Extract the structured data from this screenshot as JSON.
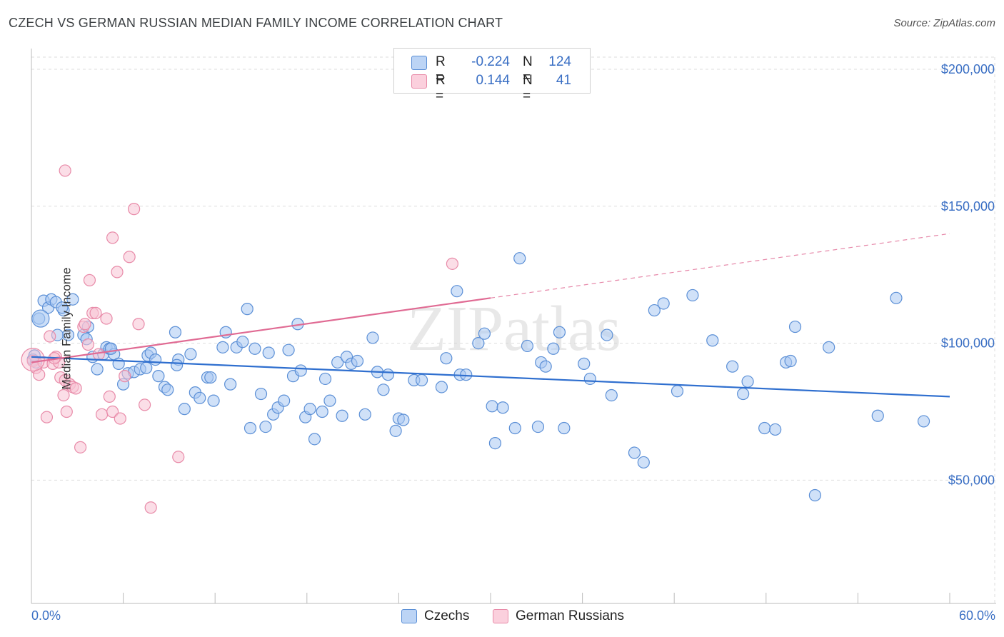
{
  "title": "CZECH VS GERMAN RUSSIAN MEDIAN FAMILY INCOME CORRELATION CHART",
  "source": "Source: ZipAtlas.com",
  "watermark": "ZIPatlas",
  "legend": {
    "rows": [
      {
        "r_label": "R =",
        "r_value": "-0.224",
        "n_label": "N =",
        "n_value": "124"
      },
      {
        "r_label": "R =",
        "r_value": "0.144",
        "n_label": "N =",
        "n_value": "41"
      }
    ]
  },
  "bottom_legend": {
    "series_a": "Czechs",
    "series_b": "German Russians"
  },
  "colors": {
    "czech_fill": "#a9c8f2",
    "czech_stroke": "#5b8fd6",
    "czech_line": "#2f6fcf",
    "gr_fill": "#f8c2d3",
    "gr_stroke": "#e88aa8",
    "gr_line": "#e06a93",
    "axis_text": "#3a6fc4",
    "grid": "#dddddd"
  },
  "chart_data": {
    "type": "scatter",
    "title": "CZECH VS GERMAN RUSSIAN MEDIAN FAMILY INCOME CORRELATION CHART",
    "xlabel": "",
    "ylabel": "Median Family Income",
    "xlim": [
      0,
      60
    ],
    "ylim": [
      5000,
      210000
    ],
    "x_tick_labels": [
      "0.0%",
      "60.0%"
    ],
    "y_ticks": [
      50000,
      100000,
      150000,
      200000
    ],
    "y_tick_labels": [
      "$50,000",
      "$100,000",
      "$150,000",
      "$200,000"
    ],
    "grid": true,
    "series": [
      {
        "name": "Czechs",
        "r": -0.224,
        "n": 124,
        "trend": {
          "x0": 0,
          "y0": 95000,
          "x1": 60,
          "y1": 80500
        },
        "points": [
          [
            0.5,
            109000
          ],
          [
            0.8,
            115500
          ],
          [
            1.1,
            113000
          ],
          [
            1.3,
            116000
          ],
          [
            1.6,
            115000
          ],
          [
            2.1,
            112000
          ],
          [
            2.4,
            103000
          ],
          [
            2.7,
            116000
          ],
          [
            3.4,
            103000
          ],
          [
            3.6,
            101500
          ],
          [
            3.7,
            106000
          ],
          [
            4.0,
            95000
          ],
          [
            4.3,
            90500
          ],
          [
            4.7,
            96000
          ],
          [
            4.9,
            98500
          ],
          [
            5.1,
            98000
          ],
          [
            5.4,
            96000
          ],
          [
            5.7,
            92500
          ],
          [
            6.0,
            85000
          ],
          [
            6.3,
            89000
          ],
          [
            6.7,
            89500
          ],
          [
            7.1,
            90500
          ],
          [
            7.5,
            91000
          ],
          [
            7.6,
            95500
          ],
          [
            7.8,
            96500
          ],
          [
            8.1,
            94000
          ],
          [
            8.3,
            88000
          ],
          [
            8.7,
            84000
          ],
          [
            8.9,
            83000
          ],
          [
            9.4,
            104000
          ],
          [
            9.6,
            94000
          ],
          [
            10.0,
            76000
          ],
          [
            10.4,
            96000
          ],
          [
            10.7,
            82000
          ],
          [
            11.0,
            80000
          ],
          [
            11.5,
            87500
          ],
          [
            11.7,
            87500
          ],
          [
            11.9,
            79000
          ],
          [
            12.5,
            98500
          ],
          [
            12.7,
            104000
          ],
          [
            13.0,
            85000
          ],
          [
            13.4,
            98500
          ],
          [
            13.8,
            100500
          ],
          [
            14.1,
            112500
          ],
          [
            14.3,
            69000
          ],
          [
            14.6,
            98000
          ],
          [
            15.0,
            81500
          ],
          [
            15.3,
            69500
          ],
          [
            15.5,
            96500
          ],
          [
            15.8,
            74000
          ],
          [
            16.1,
            76500
          ],
          [
            16.5,
            79000
          ],
          [
            16.8,
            97500
          ],
          [
            17.1,
            88000
          ],
          [
            17.4,
            107000
          ],
          [
            17.6,
            90000
          ],
          [
            17.9,
            73000
          ],
          [
            18.2,
            76000
          ],
          [
            18.5,
            65000
          ],
          [
            19.0,
            75000
          ],
          [
            19.2,
            87000
          ],
          [
            19.5,
            79000
          ],
          [
            20.0,
            93000
          ],
          [
            20.3,
            73500
          ],
          [
            20.6,
            95000
          ],
          [
            20.9,
            92500
          ],
          [
            21.3,
            93500
          ],
          [
            21.8,
            74000
          ],
          [
            22.3,
            102000
          ],
          [
            22.6,
            89500
          ],
          [
            23.0,
            83000
          ],
          [
            23.3,
            88500
          ],
          [
            23.8,
            68000
          ],
          [
            24.0,
            72500
          ],
          [
            24.3,
            72000
          ],
          [
            25.0,
            86500
          ],
          [
            25.5,
            86500
          ],
          [
            26.8,
            84000
          ],
          [
            27.1,
            94500
          ],
          [
            27.8,
            119000
          ],
          [
            28.0,
            88500
          ],
          [
            28.4,
            88500
          ],
          [
            29.2,
            100000
          ],
          [
            29.6,
            103500
          ],
          [
            30.1,
            77000
          ],
          [
            30.3,
            63500
          ],
          [
            30.8,
            76500
          ],
          [
            31.6,
            69000
          ],
          [
            31.9,
            131000
          ],
          [
            32.4,
            99000
          ],
          [
            33.1,
            69500
          ],
          [
            33.3,
            93000
          ],
          [
            33.6,
            91500
          ],
          [
            34.1,
            98000
          ],
          [
            34.5,
            104000
          ],
          [
            34.8,
            69000
          ],
          [
            36.1,
            92500
          ],
          [
            36.5,
            87000
          ],
          [
            37.6,
            103000
          ],
          [
            37.9,
            81000
          ],
          [
            39.4,
            60000
          ],
          [
            40.0,
            56500
          ],
          [
            40.7,
            112000
          ],
          [
            41.3,
            114500
          ],
          [
            42.2,
            82500
          ],
          [
            43.2,
            117500
          ],
          [
            44.5,
            101000
          ],
          [
            45.8,
            91500
          ],
          [
            46.5,
            81500
          ],
          [
            46.8,
            86000
          ],
          [
            47.9,
            69000
          ],
          [
            48.6,
            68500
          ],
          [
            49.3,
            93000
          ],
          [
            49.6,
            93500
          ],
          [
            49.9,
            106000
          ],
          [
            51.2,
            44500
          ],
          [
            52.1,
            98500
          ],
          [
            55.3,
            73500
          ],
          [
            56.5,
            116500
          ],
          [
            58.3,
            71500
          ],
          [
            0.1,
            94000
          ],
          [
            0.3,
            93000
          ],
          [
            0.2,
            95500
          ],
          [
            1.7,
            103000
          ],
          [
            9.5,
            92000
          ],
          [
            5.2,
            98000
          ],
          [
            2.0,
            113000
          ]
        ]
      },
      {
        "name": "German Russians",
        "r": 0.144,
        "n": 41,
        "trend": {
          "x0": 0,
          "y0": 93000,
          "x1": 30,
          "y1": 116500
        },
        "trend_extended": {
          "x0": 30,
          "y0": 116500,
          "x1": 60,
          "y1": 140000
        },
        "points": [
          [
            0.1,
            93500
          ],
          [
            0.3,
            91000
          ],
          [
            0.5,
            88500
          ],
          [
            0.8,
            93000
          ],
          [
            1.0,
            73000
          ],
          [
            1.2,
            102500
          ],
          [
            1.4,
            92500
          ],
          [
            1.6,
            95000
          ],
          [
            1.8,
            93000
          ],
          [
            1.9,
            87500
          ],
          [
            2.1,
            81000
          ],
          [
            2.2,
            86500
          ],
          [
            2.3,
            75000
          ],
          [
            2.5,
            85000
          ],
          [
            2.7,
            84000
          ],
          [
            2.9,
            83500
          ],
          [
            3.2,
            62000
          ],
          [
            3.4,
            106000
          ],
          [
            3.5,
            107000
          ],
          [
            3.7,
            99500
          ],
          [
            3.8,
            123000
          ],
          [
            4.0,
            111000
          ],
          [
            4.2,
            111000
          ],
          [
            4.4,
            96000
          ],
          [
            4.6,
            74000
          ],
          [
            4.9,
            109000
          ],
          [
            5.1,
            80500
          ],
          [
            5.3,
            75000
          ],
          [
            5.6,
            126000
          ],
          [
            5.8,
            72500
          ],
          [
            6.1,
            88000
          ],
          [
            6.4,
            131500
          ],
          [
            6.7,
            149000
          ],
          [
            7.0,
            107000
          ],
          [
            7.4,
            77500
          ],
          [
            7.8,
            40000
          ],
          [
            9.6,
            58500
          ],
          [
            2.2,
            163000
          ],
          [
            5.3,
            138500
          ],
          [
            27.5,
            129000
          ],
          [
            1.5,
            94500
          ]
        ]
      }
    ]
  }
}
